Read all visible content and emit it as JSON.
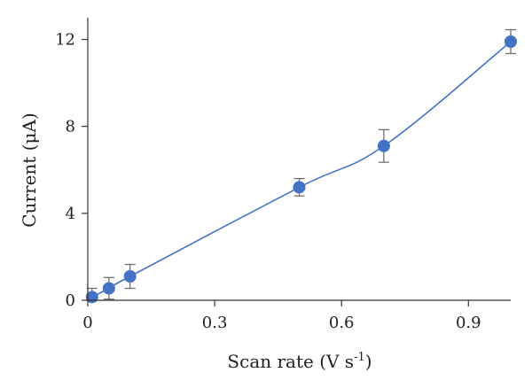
{
  "colors": {
    "series": "#4472C4",
    "error_bar": "#707070",
    "axis": "#333333"
  },
  "chart_data": {
    "type": "scatter",
    "title": "",
    "xlabel": "Scan rate (V s",
    "xlabel_superscript": "-1",
    "xlabel_suffix": ")",
    "ylabel": "Current (μA)",
    "xlim": [
      0,
      1.0
    ],
    "ylim": [
      0,
      13
    ],
    "x_ticks": [
      0,
      0.3,
      0.6,
      0.9
    ],
    "x_tick_labels": [
      "0",
      "0.3",
      "0.6",
      "0.9"
    ],
    "y_ticks": [
      0,
      4,
      8,
      12
    ],
    "y_tick_labels": [
      "0",
      "4",
      "8",
      "12"
    ],
    "grid": false,
    "series": [
      {
        "x": [
          0.01,
          0.05,
          0.1,
          0.5,
          0.7,
          1.0
        ],
        "y": [
          0.15,
          0.55,
          1.1,
          5.2,
          7.1,
          11.9
        ],
        "error": [
          0.4,
          0.5,
          0.55,
          0.4,
          0.75,
          0.55
        ]
      }
    ]
  }
}
